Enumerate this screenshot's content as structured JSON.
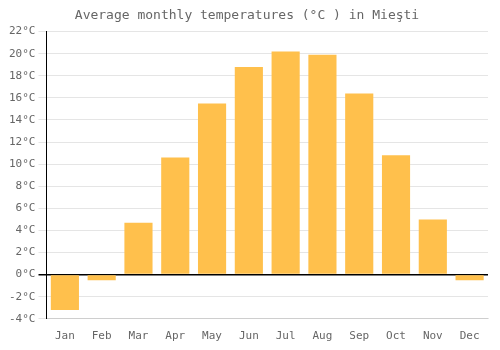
{
  "chart_data": {
    "type": "bar",
    "title": "Average monthly temperatures (°C ) in Mieşti",
    "categories": [
      "Jan",
      "Feb",
      "Mar",
      "Apr",
      "May",
      "Jun",
      "Jul",
      "Aug",
      "Sep",
      "Oct",
      "Nov",
      "Dec"
    ],
    "values": [
      -3.2,
      -0.5,
      4.7,
      10.6,
      15.5,
      18.8,
      20.2,
      19.9,
      16.4,
      10.8,
      5.0,
      -0.5
    ],
    "color": "#FFC04C",
    "ylim": [
      -4,
      22
    ],
    "yticks": [
      {
        "value": -4,
        "label": "-4°C"
      },
      {
        "value": -2,
        "label": "-2°C"
      },
      {
        "value": 0,
        "label": "0°C"
      },
      {
        "value": 2,
        "label": "2°C"
      },
      {
        "value": 4,
        "label": "4°C"
      },
      {
        "value": 6,
        "label": "6°C"
      },
      {
        "value": 8,
        "label": "8°C"
      },
      {
        "value": 10,
        "label": "10°C"
      },
      {
        "value": 12,
        "label": "12°C"
      },
      {
        "value": 14,
        "label": "14°C"
      },
      {
        "value": 16,
        "label": "16°C"
      },
      {
        "value": 18,
        "label": "18°C"
      },
      {
        "value": 20,
        "label": "20°C"
      },
      {
        "value": 22,
        "label": "22°C"
      }
    ],
    "grid": true
  }
}
